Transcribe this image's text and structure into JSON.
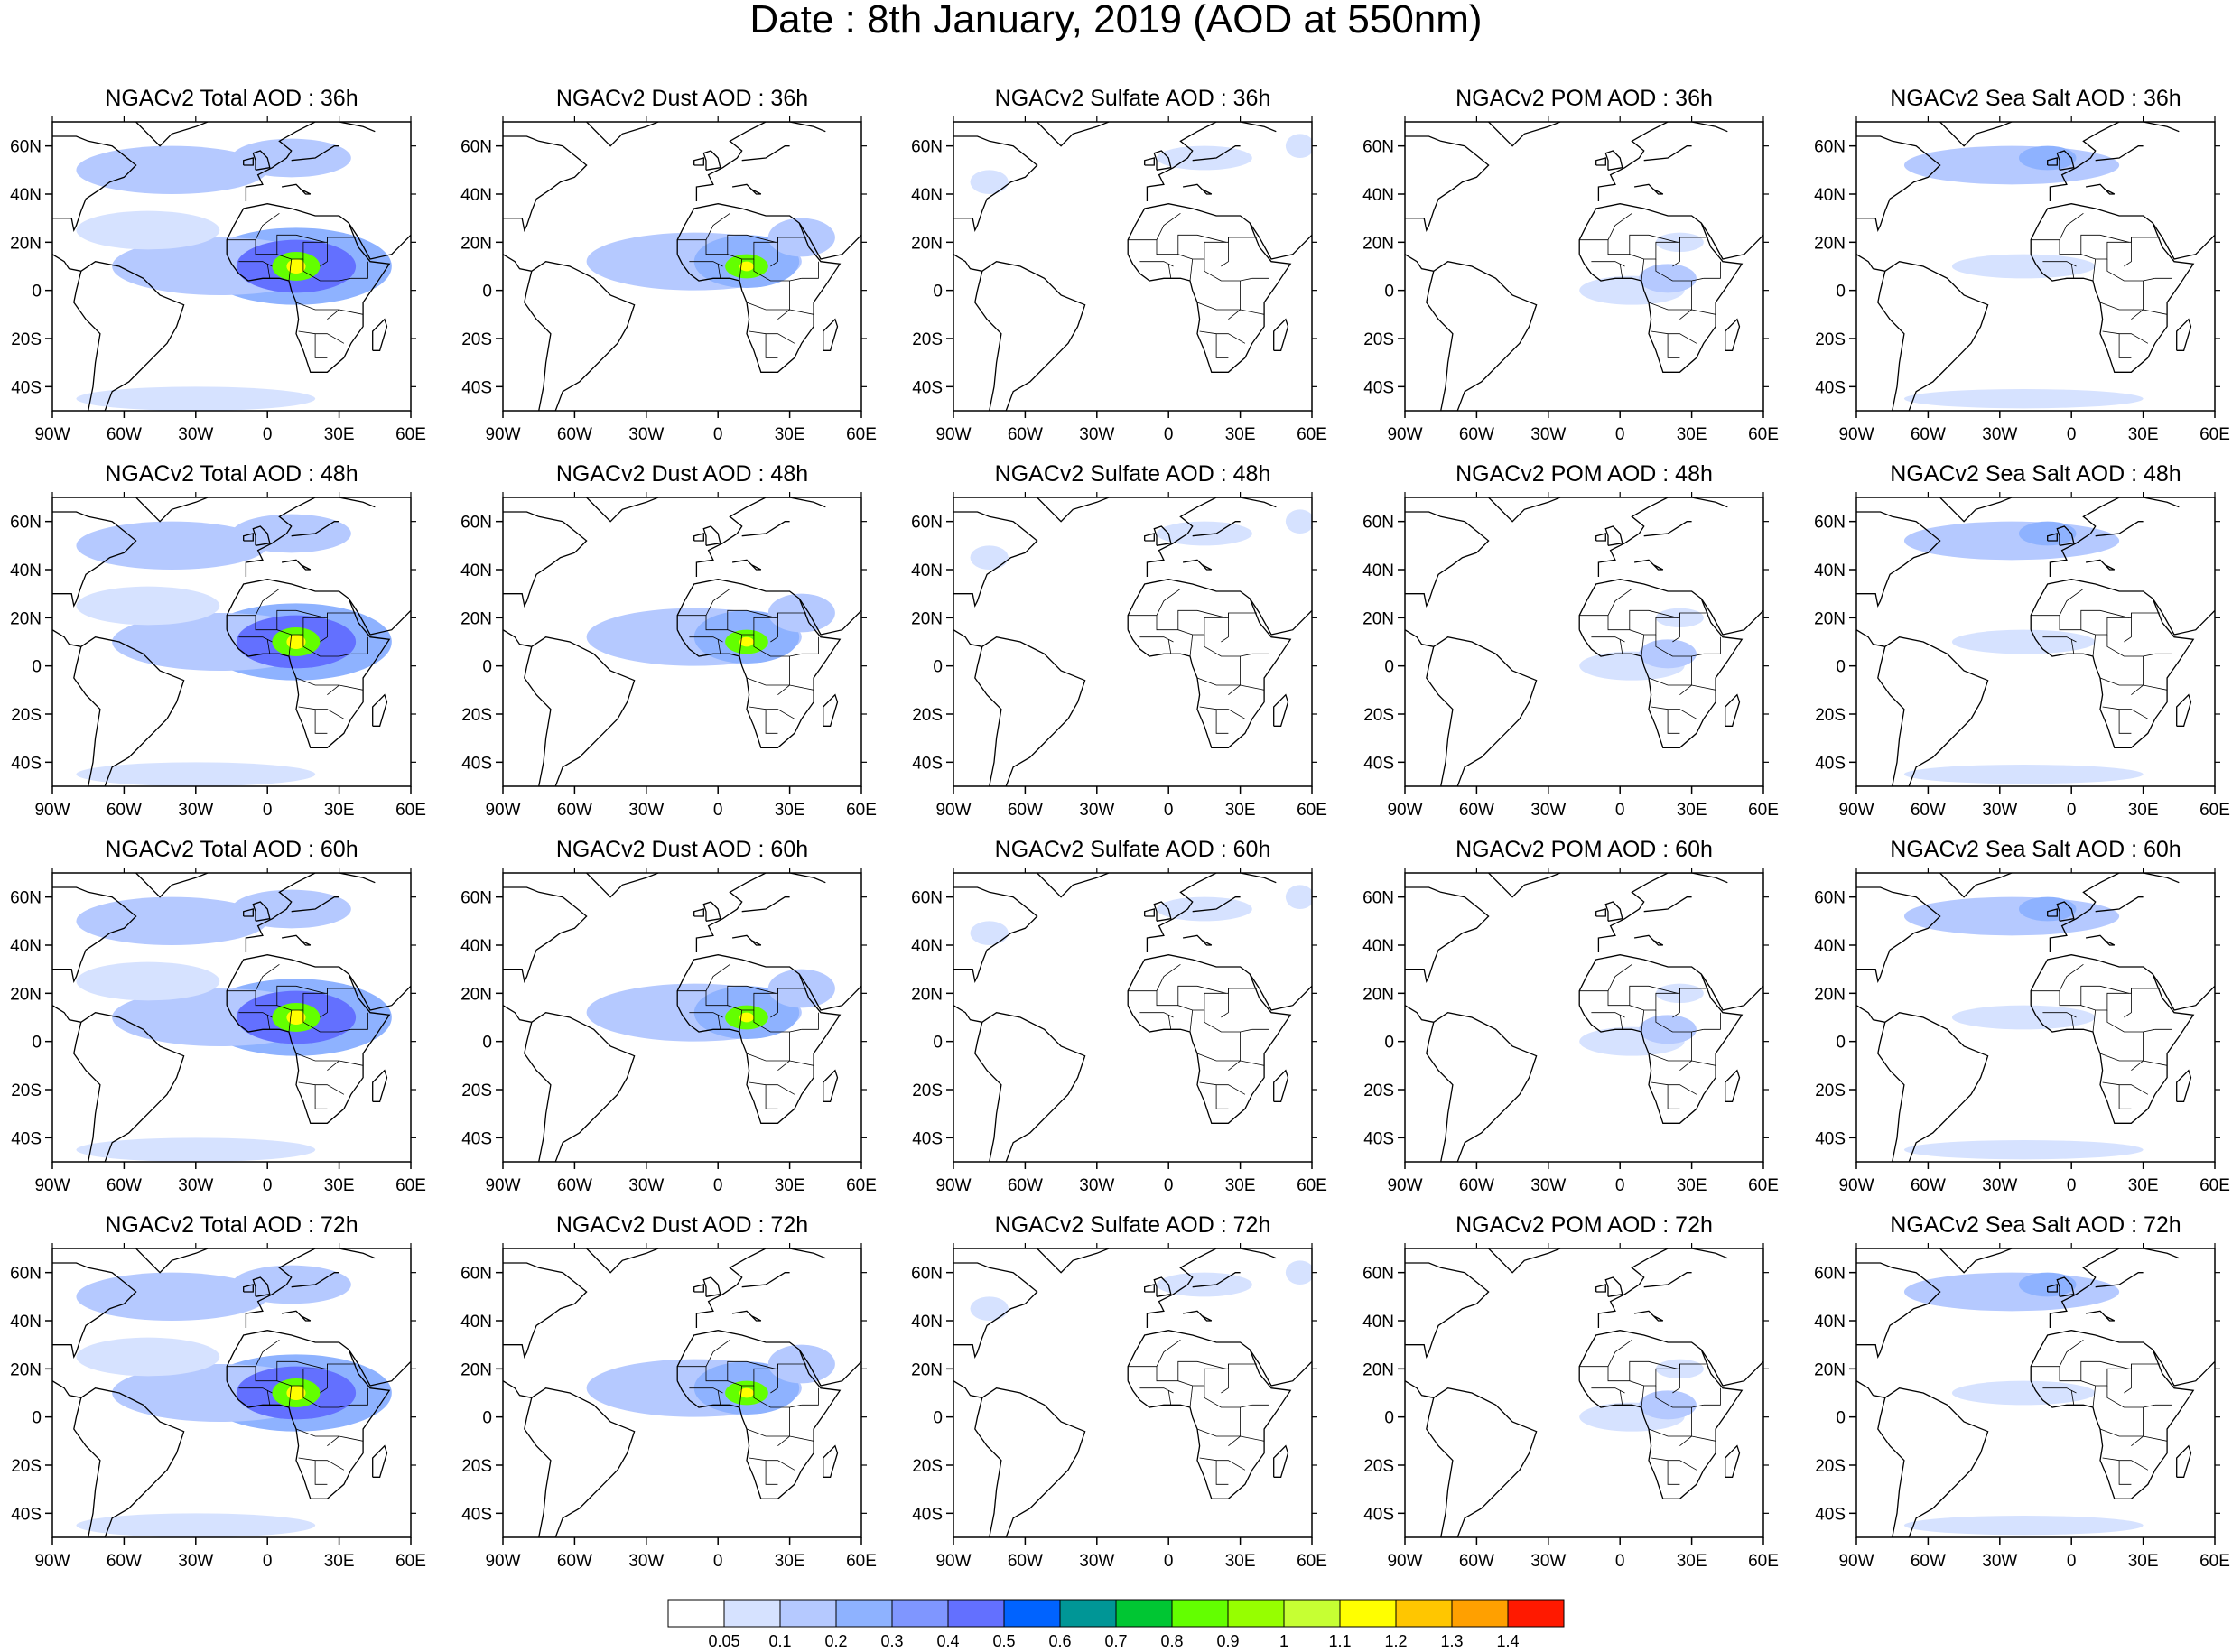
{
  "title": "Date : 8th January, 2019 (AOD at 550nm)",
  "panels": [
    {
      "title": "NGACv2 Total AOD : 36h",
      "species": "total",
      "hour": 36
    },
    {
      "title": "NGACv2 Dust AOD : 36h",
      "species": "dust",
      "hour": 36
    },
    {
      "title": "NGACv2 Sulfate AOD : 36h",
      "species": "sulfate",
      "hour": 36
    },
    {
      "title": "NGACv2 POM AOD : 36h",
      "species": "pom",
      "hour": 36
    },
    {
      "title": "NGACv2 Sea Salt AOD : 36h",
      "species": "seasalt",
      "hour": 36
    },
    {
      "title": "NGACv2 Total AOD : 48h",
      "species": "total",
      "hour": 48
    },
    {
      "title": "NGACv2 Dust AOD : 48h",
      "species": "dust",
      "hour": 48
    },
    {
      "title": "NGACv2 Sulfate AOD : 48h",
      "species": "sulfate",
      "hour": 48
    },
    {
      "title": "NGACv2 POM AOD : 48h",
      "species": "pom",
      "hour": 48
    },
    {
      "title": "NGACv2 Sea Salt AOD : 48h",
      "species": "seasalt",
      "hour": 48
    },
    {
      "title": "NGACv2 Total AOD : 60h",
      "species": "total",
      "hour": 60
    },
    {
      "title": "NGACv2 Dust AOD : 60h",
      "species": "dust",
      "hour": 60
    },
    {
      "title": "NGACv2 Sulfate AOD : 60h",
      "species": "sulfate",
      "hour": 60
    },
    {
      "title": "NGACv2 POM AOD : 60h",
      "species": "pom",
      "hour": 60
    },
    {
      "title": "NGACv2 Sea Salt AOD : 60h",
      "species": "seasalt",
      "hour": 60
    },
    {
      "title": "NGACv2 Total AOD : 72h",
      "species": "total",
      "hour": 72
    },
    {
      "title": "NGACv2 Dust AOD : 72h",
      "species": "dust",
      "hour": 72
    },
    {
      "title": "NGACv2 Sulfate AOD : 72h",
      "species": "sulfate",
      "hour": 72
    },
    {
      "title": "NGACv2 POM AOD : 72h",
      "species": "pom",
      "hour": 72
    },
    {
      "title": "NGACv2 Sea Salt  AOD : 72h",
      "species": "seasalt",
      "hour": 72
    }
  ],
  "map": {
    "lon_range": [
      -90,
      60
    ],
    "lat_range": [
      -50,
      70
    ],
    "lon_ticks": [
      {
        "value": -90,
        "label": "90W"
      },
      {
        "value": -60,
        "label": "60W"
      },
      {
        "value": -30,
        "label": "30W"
      },
      {
        "value": 0,
        "label": "0"
      },
      {
        "value": 30,
        "label": "30E"
      },
      {
        "value": 60,
        "label": "60E"
      }
    ],
    "lat_ticks": [
      {
        "value": 60,
        "label": "60N"
      },
      {
        "value": 40,
        "label": "40N"
      },
      {
        "value": 20,
        "label": "20N"
      },
      {
        "value": 0,
        "label": "0"
      },
      {
        "value": -20,
        "label": "20S"
      },
      {
        "value": -40,
        "label": "40S"
      }
    ]
  },
  "colorbar": {
    "labels": [
      "0.05",
      "0.1",
      "0.2",
      "0.3",
      "0.4",
      "0.5",
      "0.6",
      "0.7",
      "0.8",
      "0.9",
      "1",
      "1.1",
      "1.2",
      "1.3",
      "1.4"
    ],
    "colors": [
      "#ffffff",
      "#d6e2ff",
      "#b5c9ff",
      "#8eb2ff",
      "#7f96ff",
      "#6370ff",
      "#0063ff",
      "#009696",
      "#00c633",
      "#63ff00",
      "#96ff00",
      "#c6ff33",
      "#ffff00",
      "#ffc600",
      "#ffa000",
      "#ff7c00",
      "#ff1900"
    ]
  },
  "plumes": {
    "total": [
      {
        "lon": 12,
        "lat": 10,
        "rx": 40,
        "ry": 16,
        "level": 3
      },
      {
        "lon": -20,
        "lat": 10,
        "rx": 45,
        "ry": 12,
        "level": 2
      },
      {
        "lon": 12,
        "lat": 10,
        "rx": 25,
        "ry": 11,
        "level": 5
      },
      {
        "lon": 12,
        "lat": 10,
        "rx": 10,
        "ry": 6,
        "level": 9
      },
      {
        "lon": 12,
        "lat": 10,
        "rx": 4,
        "ry": 3,
        "level": 12
      },
      {
        "lon": -40,
        "lat": 50,
        "rx": 40,
        "ry": 10,
        "level": 2
      },
      {
        "lon": 10,
        "lat": 55,
        "rx": 25,
        "ry": 8,
        "level": 2
      },
      {
        "lon": -30,
        "lat": -45,
        "rx": 50,
        "ry": 5,
        "level": 1
      },
      {
        "lon": -50,
        "lat": 25,
        "rx": 30,
        "ry": 8,
        "level": 1
      }
    ],
    "dust": [
      {
        "lon": -10,
        "lat": 12,
        "rx": 45,
        "ry": 12,
        "level": 2
      },
      {
        "lon": 12,
        "lat": 12,
        "rx": 22,
        "ry": 11,
        "level": 3
      },
      {
        "lon": 12,
        "lat": 10,
        "rx": 9,
        "ry": 5,
        "level": 9
      },
      {
        "lon": 12,
        "lat": 10,
        "rx": 3,
        "ry": 2,
        "level": 12
      },
      {
        "lon": 35,
        "lat": 22,
        "rx": 14,
        "ry": 8,
        "level": 2
      }
    ],
    "sulfate": [
      {
        "lon": 15,
        "lat": 55,
        "rx": 20,
        "ry": 5,
        "level": 1
      },
      {
        "lon": -75,
        "lat": 45,
        "rx": 8,
        "ry": 5,
        "level": 1
      },
      {
        "lon": 55,
        "lat": 60,
        "rx": 6,
        "ry": 5,
        "level": 1
      }
    ],
    "pom": [
      {
        "lon": 5,
        "lat": 0,
        "rx": 22,
        "ry": 6,
        "level": 1
      },
      {
        "lon": 20,
        "lat": 5,
        "rx": 12,
        "ry": 6,
        "level": 2
      },
      {
        "lon": 25,
        "lat": 20,
        "rx": 10,
        "ry": 4,
        "level": 1
      }
    ],
    "seasalt": [
      {
        "lon": -25,
        "lat": 52,
        "rx": 45,
        "ry": 8,
        "level": 2
      },
      {
        "lon": -10,
        "lat": 55,
        "rx": 12,
        "ry": 5,
        "level": 3
      },
      {
        "lon": -20,
        "lat": 10,
        "rx": 30,
        "ry": 5,
        "level": 1
      },
      {
        "lon": -20,
        "lat": -45,
        "rx": 50,
        "ry": 4,
        "level": 1
      }
    ]
  }
}
